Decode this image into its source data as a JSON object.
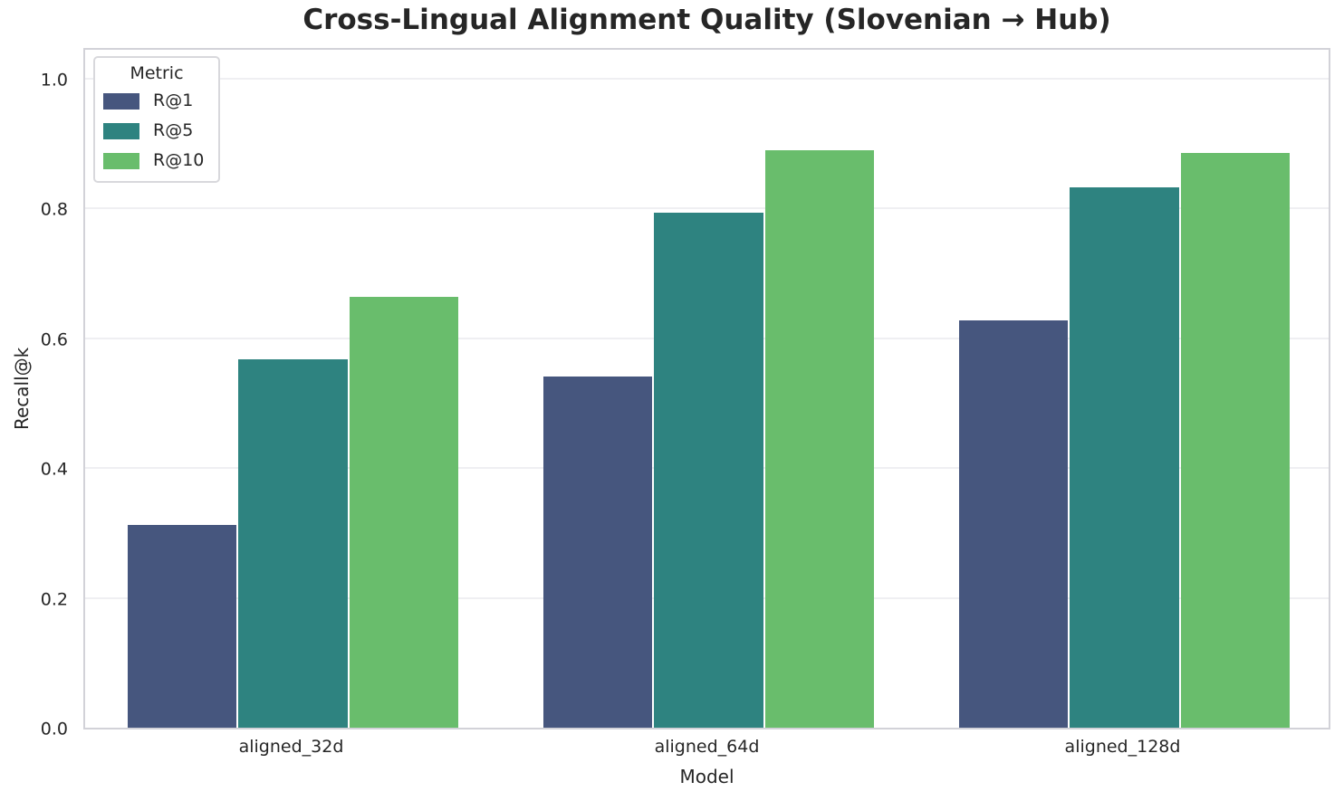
{
  "chart_data": {
    "type": "bar",
    "title": "Cross-Lingual Alignment Quality (Slovenian → Hub)",
    "xlabel": "Model",
    "ylabel": "Recall@k",
    "categories": [
      "aligned_32d",
      "aligned_64d",
      "aligned_128d"
    ],
    "series": [
      {
        "name": "R@1",
        "color": "#46567E",
        "values": [
          0.313,
          0.541,
          0.627
        ]
      },
      {
        "name": "R@5",
        "color": "#2E8380",
        "values": [
          0.568,
          0.794,
          0.833
        ]
      },
      {
        "name": "R@10",
        "color": "#69BD6C",
        "values": [
          0.664,
          0.889,
          0.885
        ]
      }
    ],
    "legend_title": "Metric",
    "legend_position": "upper left",
    "ylim": [
      0,
      1.05
    ],
    "yticks": [
      "0.0",
      "0.2",
      "0.4",
      "0.6",
      "0.8",
      "1.0"
    ],
    "grid": "horizontal",
    "bar_group_width": 0.8
  },
  "style": {
    "grid_color": "#efeff2",
    "spine_color": "#d2d2d8",
    "text_color": "#262626",
    "background_color": "#ffffff"
  }
}
